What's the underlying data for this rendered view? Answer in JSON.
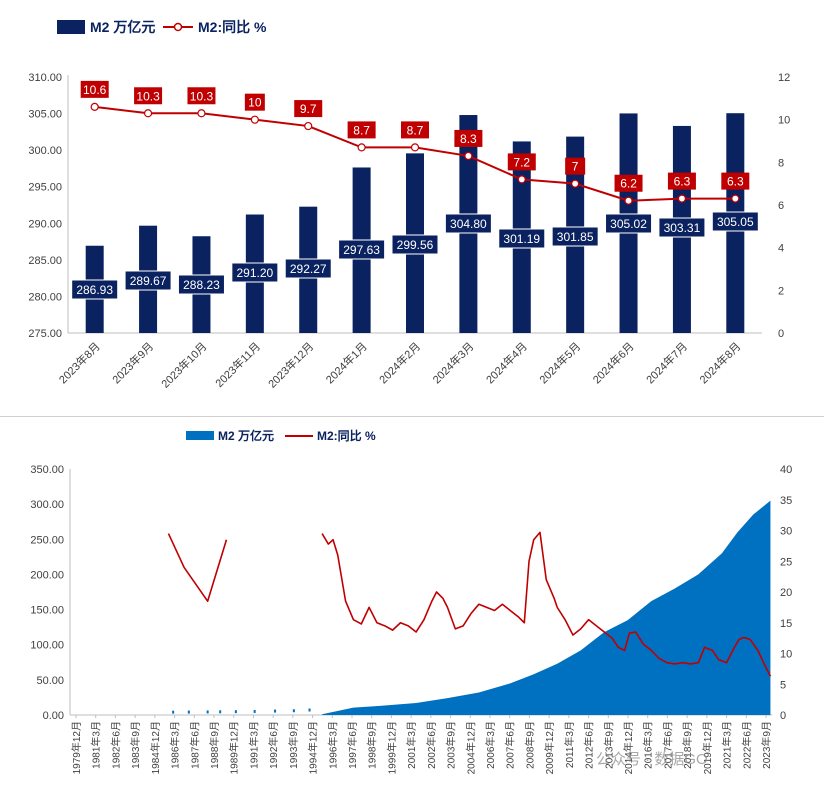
{
  "chart_data": [
    {
      "type": "bar+line",
      "legend": {
        "placement": "top-left",
        "bar_label": "M2 万亿元",
        "line_label": "M2:同比 %"
      },
      "categories": [
        "2023年8月",
        "2023年9月",
        "2023年10月",
        "2023年11月",
        "2023年12月",
        "2024年1月",
        "2024年2月",
        "2024年3月",
        "2024年4月",
        "2024年5月",
        "2024年6月",
        "2024年7月",
        "2024年8月"
      ],
      "series": [
        {
          "name": "M2 万亿元",
          "axis": "left",
          "values": [
            286.93,
            289.67,
            288.23,
            291.2,
            292.27,
            297.63,
            299.56,
            304.8,
            301.19,
            301.85,
            305.02,
            303.31,
            305.05
          ]
        },
        {
          "name": "M2:同比 %",
          "axis": "right",
          "values": [
            10.6,
            10.3,
            10.3,
            10,
            9.7,
            8.7,
            8.7,
            8.3,
            7.2,
            7,
            6.2,
            6.3,
            6.3
          ]
        }
      ],
      "bar_labels": [
        "286.93",
        "289.67",
        "288.23",
        "291.20",
        "292.27",
        "297.63",
        "299.56",
        "304.80",
        "301.19",
        "301.85",
        "305.02",
        "303.31",
        "305.05"
      ],
      "line_labels": [
        "10.6",
        "10.3",
        "10.3",
        "10",
        "9.7",
        "8.7",
        "8.7",
        "8.3",
        "7.2",
        "7",
        "6.2",
        "6.3",
        "6.3"
      ],
      "y_left": {
        "min": 275,
        "max": 310,
        "ticks": [
          "275.00",
          "280.00",
          "285.00",
          "290.00",
          "295.00",
          "300.00",
          "305.00",
          "310.00"
        ]
      },
      "y_right": {
        "min": 0,
        "max": 12,
        "ticks": [
          "0",
          "2",
          "4",
          "6",
          "8",
          "10",
          "12"
        ]
      },
      "colors": {
        "bar": "#0b2260",
        "line": "#c00000",
        "label_bg": "#c00000"
      },
      "grid": false
    },
    {
      "type": "area+line",
      "legend": {
        "placement": "top-center",
        "area_label": "M2 万亿元",
        "line_label": "M2:同比 %"
      },
      "x_ticks": [
        "1979年12月",
        "1981年3月",
        "1982年6月",
        "1983年9月",
        "1984年12月",
        "1986年3月",
        "1987年6月",
        "1988年9月",
        "1989年12月",
        "1991年3月",
        "1992年6月",
        "1993年9月",
        "1994年12月",
        "1996年3月",
        "1997年6月",
        "1998年9月",
        "1999年12月",
        "2001年3月",
        "2002年6月",
        "2003年9月",
        "2004年12月",
        "2006年3月",
        "2007年6月",
        "2008年9月",
        "2009年12月",
        "2011年3月",
        "2012年6月",
        "2013年9月",
        "2014年12月",
        "2016年3月",
        "2017年6月",
        "2018年9月",
        "2019年12月",
        "2021年3月",
        "2022年6月",
        "2023年9月"
      ],
      "y_left": {
        "min": 0,
        "max": 350,
        "ticks": [
          "0.00",
          "50.00",
          "100.00",
          "150.00",
          "200.00",
          "250.00",
          "300.00",
          "350.00"
        ]
      },
      "y_right": {
        "min": 0,
        "max": 40,
        "ticks": [
          "0",
          "5",
          "10",
          "15",
          "20",
          "25",
          "30",
          "35",
          "40"
        ]
      },
      "m2_series": {
        "name": "M2 万亿元",
        "points": [
          [
            1996.0,
            1.0
          ],
          [
            1998.0,
            10.5
          ],
          [
            2000.0,
            13.5
          ],
          [
            2002.0,
            17.0
          ],
          [
            2004.0,
            24.0
          ],
          [
            2006.0,
            32.0
          ],
          [
            2008.0,
            45.0
          ],
          [
            2009.5,
            58.0
          ],
          [
            2011.0,
            73.0
          ],
          [
            2012.5,
            92.0
          ],
          [
            2014.0,
            118.0
          ],
          [
            2015.5,
            135.0
          ],
          [
            2017.0,
            162.0
          ],
          [
            2018.5,
            180.0
          ],
          [
            2020.0,
            200.0
          ],
          [
            2021.5,
            230.0
          ],
          [
            2022.5,
            260.0
          ],
          [
            2023.5,
            285.0
          ],
          [
            2024.6,
            305.0
          ]
        ]
      },
      "m2_sparse_markers": [
        [
          1986.5,
          0.5
        ],
        [
          1987.5,
          0.6
        ],
        [
          1988.7,
          0.8
        ],
        [
          1989.5,
          1.0
        ],
        [
          1990.5,
          1.2
        ],
        [
          1991.7,
          1.5
        ],
        [
          1993.0,
          2.0
        ],
        [
          1994.2,
          2.5
        ],
        [
          1995.2,
          3.5
        ]
      ],
      "yoy_series": [
        {
          "name": "M2:同比 %",
          "points": [
            [
              1986.2,
              29.5
            ],
            [
              1987.2,
              24.0
            ],
            [
              1988.7,
              18.5
            ],
            [
              1989.9,
              28.5
            ]
          ]
        },
        {
          "name": "M2:同比 %",
          "points": [
            [
              1996.0,
              29.5
            ],
            [
              1996.4,
              27.8
            ],
            [
              1996.7,
              28.5
            ],
            [
              1997.0,
              26.0
            ],
            [
              1997.5,
              18.5
            ],
            [
              1998.0,
              15.5
            ],
            [
              1998.5,
              14.8
            ],
            [
              1999.0,
              17.5
            ],
            [
              1999.5,
              15.0
            ],
            [
              2000.0,
              14.5
            ],
            [
              2000.5,
              13.8
            ],
            [
              2001.0,
              15.0
            ],
            [
              2001.5,
              14.5
            ],
            [
              2002.0,
              13.5
            ],
            [
              2002.5,
              15.5
            ],
            [
              2003.0,
              18.5
            ],
            [
              2003.3,
              20.0
            ],
            [
              2003.7,
              19.0
            ],
            [
              2004.0,
              17.5
            ],
            [
              2004.5,
              14.0
            ],
            [
              2005.0,
              14.5
            ],
            [
              2005.5,
              16.5
            ],
            [
              2006.0,
              18.0
            ],
            [
              2006.5,
              17.5
            ],
            [
              2007.0,
              17.0
            ],
            [
              2007.5,
              18.0
            ],
            [
              2008.0,
              17.0
            ],
            [
              2008.5,
              16.0
            ],
            [
              2008.9,
              15.0
            ],
            [
              2009.2,
              25.0
            ],
            [
              2009.5,
              28.5
            ],
            [
              2009.9,
              29.7
            ],
            [
              2010.3,
              22.0
            ],
            [
              2010.8,
              19.0
            ],
            [
              2011.0,
              17.5
            ],
            [
              2011.5,
              15.5
            ],
            [
              2012.0,
              13.0
            ],
            [
              2012.5,
              14.0
            ],
            [
              2013.0,
              15.5
            ],
            [
              2013.5,
              14.5
            ],
            [
              2014.0,
              13.5
            ],
            [
              2014.5,
              12.5
            ],
            [
              2014.9,
              11.0
            ],
            [
              2015.3,
              10.5
            ],
            [
              2015.6,
              13.3
            ],
            [
              2016.0,
              13.5
            ],
            [
              2016.5,
              11.5
            ],
            [
              2017.0,
              10.5
            ],
            [
              2017.5,
              9.2
            ],
            [
              2018.0,
              8.5
            ],
            [
              2018.5,
              8.3
            ],
            [
              2019.0,
              8.5
            ],
            [
              2019.5,
              8.3
            ],
            [
              2020.0,
              8.5
            ],
            [
              2020.4,
              11.0
            ],
            [
              2020.9,
              10.5
            ],
            [
              2021.3,
              9.0
            ],
            [
              2021.8,
              8.5
            ],
            [
              2022.3,
              11.0
            ],
            [
              2022.6,
              12.3
            ],
            [
              2022.9,
              12.6
            ],
            [
              2023.3,
              12.3
            ],
            [
              2023.8,
              10.5
            ],
            [
              2024.2,
              8.3
            ],
            [
              2024.6,
              6.3
            ]
          ]
        }
      ],
      "colors": {
        "area": "#0070c0",
        "line": "#c00000"
      },
      "grid": false
    }
  ],
  "watermark_text": "公众号 · 数据GO"
}
